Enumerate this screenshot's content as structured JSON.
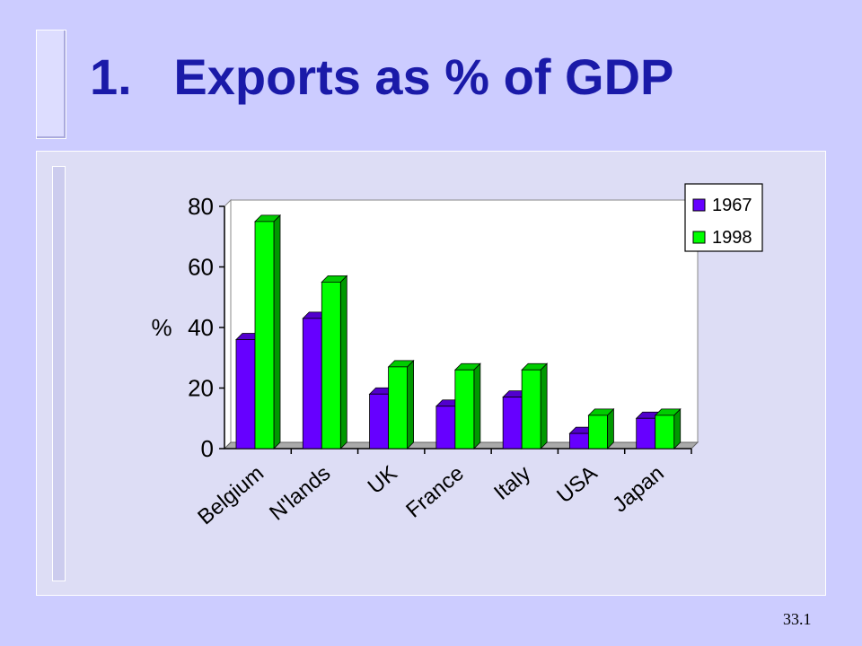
{
  "slide": {
    "title": "1.   Exports as % of GDP",
    "page_number": "33.1"
  },
  "colors": {
    "background": "#ccccff",
    "title": "#1a1aa8",
    "series_1967": "#6600ff",
    "series_1998": "#00ff00"
  },
  "chart_data": {
    "type": "bar",
    "title": "",
    "xlabel": "",
    "ylabel": "%",
    "ylim": [
      0,
      80
    ],
    "yticks": [
      0,
      20,
      40,
      60,
      80
    ],
    "categories": [
      "Belgium",
      "N'lands",
      "UK",
      "France",
      "Italy",
      "USA",
      "Japan"
    ],
    "series": [
      {
        "name": "1967",
        "color": "#6600ff",
        "values": [
          36,
          43,
          18,
          14,
          17,
          5,
          10
        ]
      },
      {
        "name": "1998",
        "color": "#00ff00",
        "values": [
          75,
          55,
          27,
          26,
          26,
          11,
          11
        ]
      }
    ],
    "legend": "top-right",
    "grid": false,
    "style": "3d-bar"
  }
}
